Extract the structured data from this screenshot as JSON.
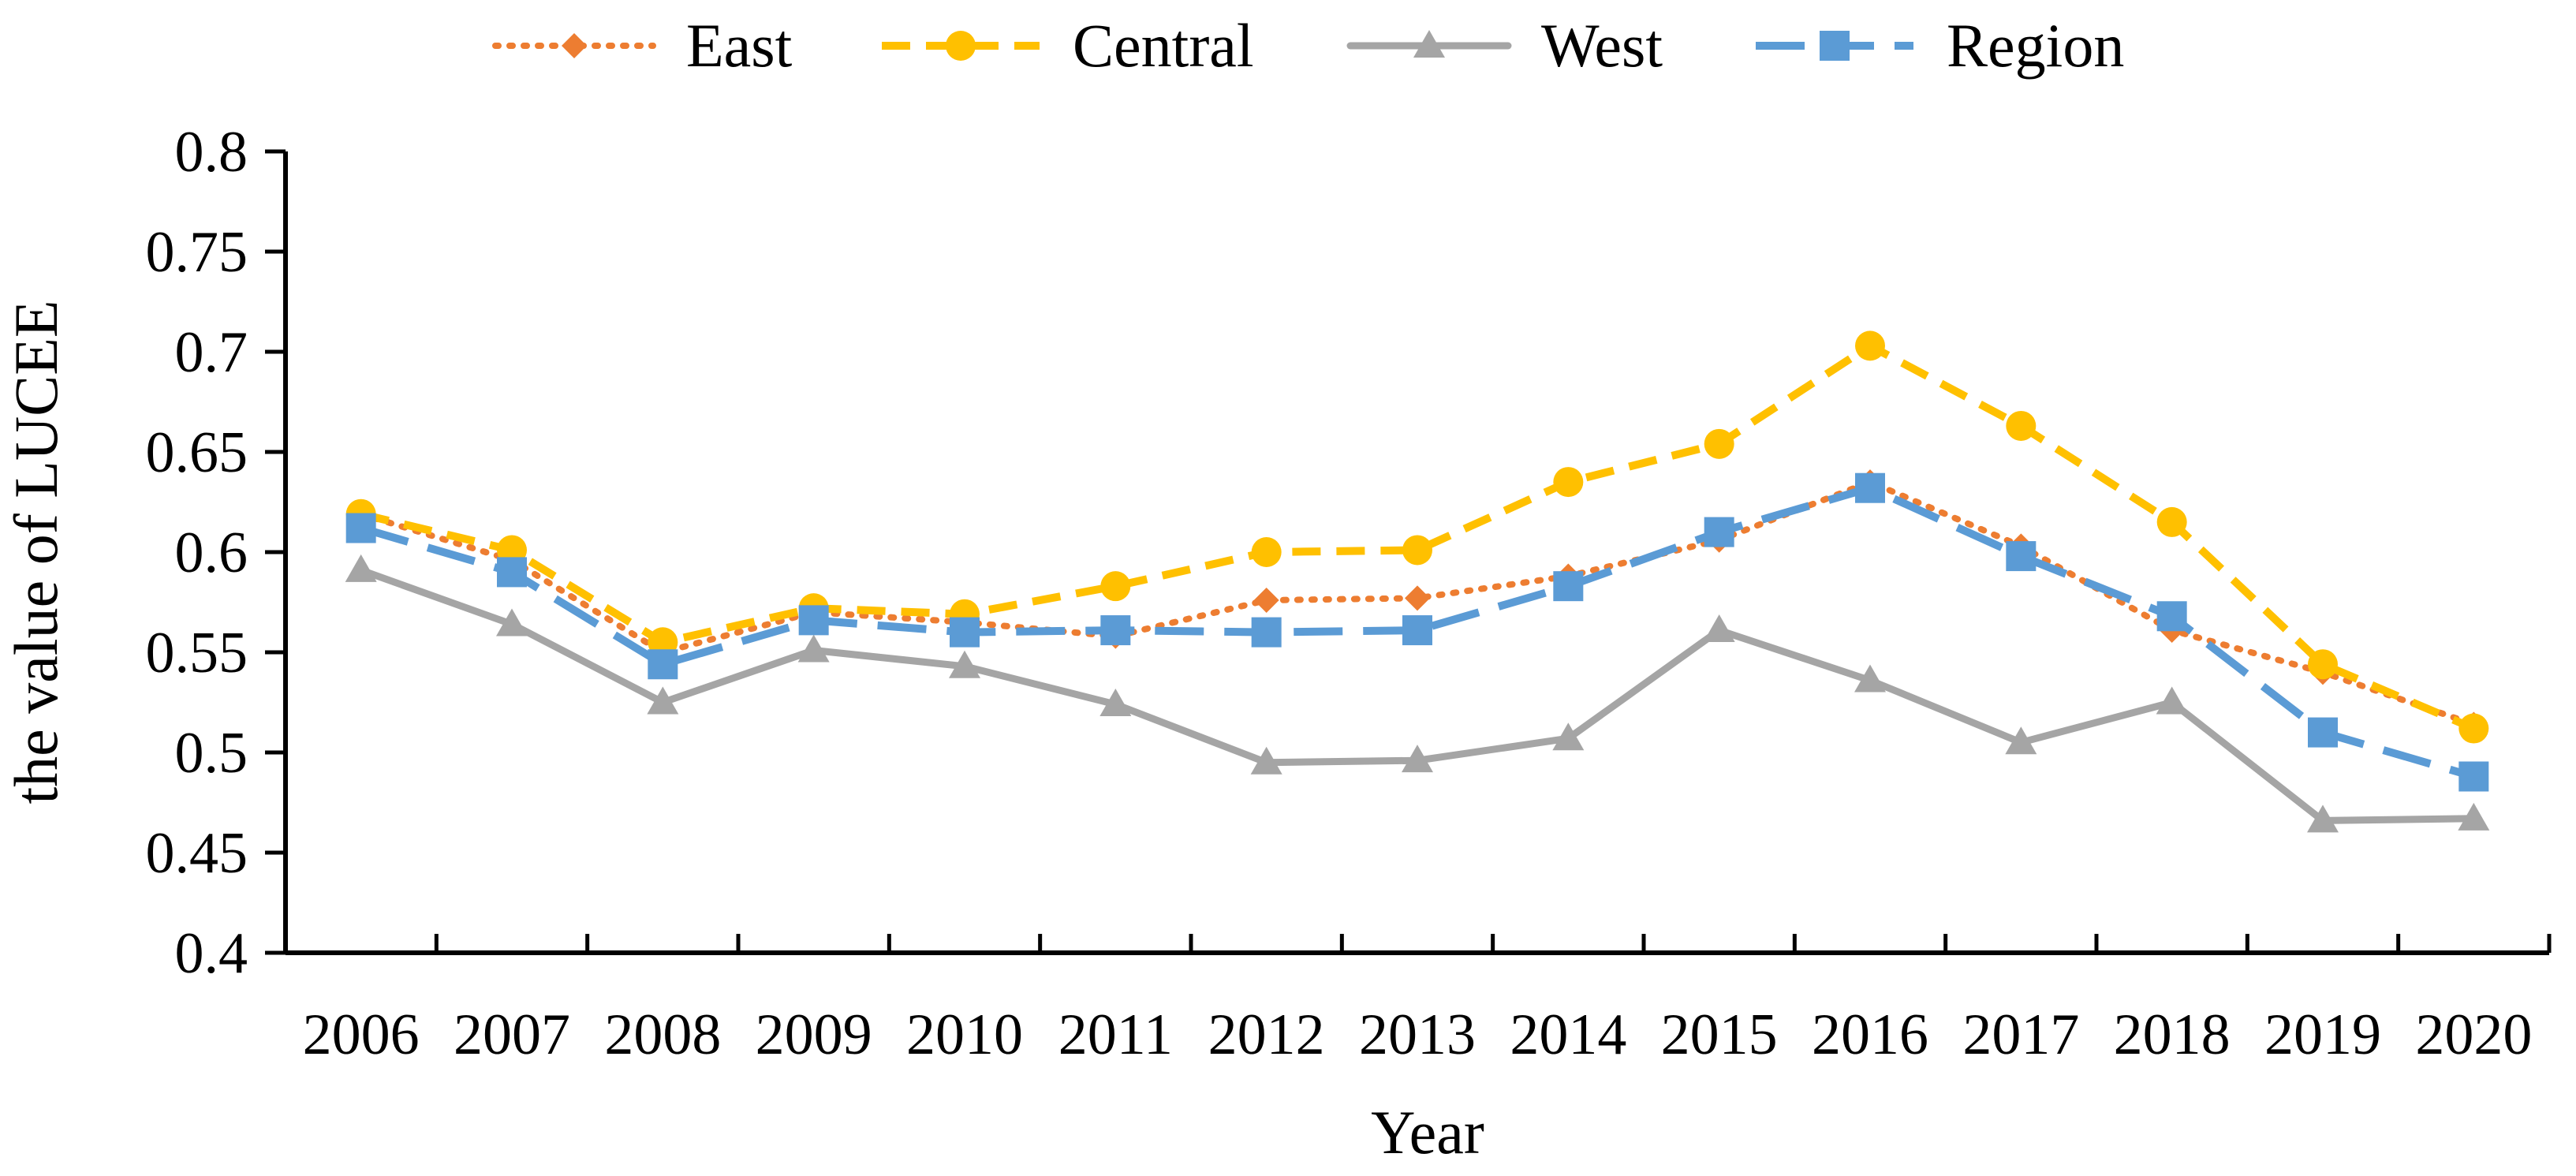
{
  "chart_data": {
    "type": "line",
    "title": "",
    "xlabel": "Year",
    "ylabel": "the value of LUCEE",
    "categories": [
      "2006",
      "2007",
      "2008",
      "2009",
      "2010",
      "2011",
      "2012",
      "2013",
      "2014",
      "2015",
      "2016",
      "2017",
      "2018",
      "2019",
      "2020"
    ],
    "ylim": [
      0.4,
      0.8
    ],
    "yticks": [
      0.4,
      0.45,
      0.5,
      0.55,
      0.6,
      0.65,
      0.7,
      0.75,
      0.8
    ],
    "ytick_labels": [
      "0.4",
      "0.45",
      "0.5",
      "0.55",
      "0.6",
      "0.65",
      "0.7",
      "0.75",
      "0.8"
    ],
    "grid": false,
    "legend_position": "top",
    "series": [
      {
        "name": "East",
        "color": "#ED7D31",
        "line_style": "dotted",
        "marker": "diamond",
        "values": [
          0.619,
          0.596,
          0.55,
          0.57,
          0.565,
          0.558,
          0.576,
          0.577,
          0.588,
          0.606,
          0.635,
          0.603,
          0.561,
          0.54,
          0.514
        ]
      },
      {
        "name": "Central",
        "color": "#FFC000",
        "line_style": "dashed",
        "marker": "circle",
        "values": [
          0.619,
          0.601,
          0.555,
          0.572,
          0.569,
          0.583,
          0.6,
          0.601,
          0.635,
          0.654,
          0.703,
          0.663,
          0.615,
          0.544,
          0.512
        ]
      },
      {
        "name": "West",
        "color": "#A5A5A5",
        "line_style": "solid",
        "marker": "triangle",
        "values": [
          0.591,
          0.564,
          0.525,
          0.551,
          0.543,
          0.524,
          0.495,
          0.496,
          0.507,
          0.561,
          0.536,
          0.505,
          0.525,
          0.466,
          0.467
        ]
      },
      {
        "name": "Region",
        "color": "#5B9BD5",
        "line_style": "long-dash",
        "marker": "square",
        "values": [
          0.612,
          0.59,
          0.544,
          0.566,
          0.56,
          0.561,
          0.56,
          0.561,
          0.583,
          0.61,
          0.632,
          0.598,
          0.568,
          0.51,
          0.488
        ]
      }
    ]
  }
}
